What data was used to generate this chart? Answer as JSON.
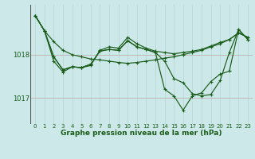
{
  "background_color": "#cce8e8",
  "grid_color_v": "#b8d8d8",
  "grid_color_h": "#c0b0b0",
  "line_color": "#1a5c1a",
  "xlabel": "Graphe pression niveau de la mer (hPa)",
  "xlabel_fontsize": 6.5,
  "yticks": [
    1017,
    1018
  ],
  "ylim": [
    1016.4,
    1019.15
  ],
  "xlim": [
    -0.5,
    23.5
  ],
  "xticks": [
    0,
    1,
    2,
    3,
    4,
    5,
    6,
    7,
    8,
    9,
    10,
    11,
    12,
    13,
    14,
    15,
    16,
    17,
    18,
    19,
    20,
    21,
    22,
    23
  ],
  "series": [
    {
      "x": [
        0,
        1,
        2,
        3,
        4,
        5,
        6,
        7,
        8,
        9,
        10,
        11,
        12,
        13,
        14,
        15,
        16,
        17,
        18,
        19,
        20,
        21,
        22,
        23
      ],
      "y": [
        1018.9,
        1018.55,
        1018.3,
        1018.1,
        1018.0,
        1017.95,
        1017.9,
        1017.88,
        1017.85,
        1017.82,
        1017.8,
        1017.82,
        1017.85,
        1017.88,
        1017.92,
        1017.95,
        1018.0,
        1018.05,
        1018.1,
        1018.18,
        1018.25,
        1018.35,
        1018.5,
        1018.4
      ]
    },
    {
      "x": [
        0,
        1,
        2,
        3,
        4,
        5,
        6,
        7,
        8,
        9,
        10,
        11,
        12,
        13,
        14,
        15,
        16,
        17,
        18,
        19,
        20,
        21,
        22,
        23
      ],
      "y": [
        1018.9,
        1018.55,
        1017.85,
        1017.6,
        1017.72,
        1017.7,
        1017.75,
        1018.1,
        1018.18,
        1018.15,
        1018.4,
        1018.25,
        1018.15,
        1018.08,
        1018.05,
        1018.02,
        1018.05,
        1018.08,
        1018.12,
        1018.2,
        1018.28,
        1018.35,
        1018.5,
        1018.4
      ]
    },
    {
      "x": [
        0,
        1,
        2,
        3,
        4,
        5,
        6,
        7,
        8,
        9,
        10,
        11,
        12,
        13,
        14,
        15,
        16,
        17,
        18,
        19,
        20,
        21,
        22,
        23
      ],
      "y": [
        1018.9,
        1018.55,
        1017.95,
        1017.65,
        1017.72,
        1017.7,
        1017.78,
        1018.08,
        1018.12,
        1018.1,
        1018.32,
        1018.18,
        1018.12,
        1018.05,
        1017.85,
        1017.45,
        1017.35,
        1017.1,
        1017.05,
        1017.08,
        1017.4,
        1018.05,
        1018.58,
        1018.35
      ]
    },
    {
      "x": [
        0,
        1,
        2,
        3,
        4,
        5,
        6,
        7,
        8,
        9,
        10,
        11,
        12,
        13,
        14,
        15,
        16,
        17,
        18,
        19,
        20,
        21,
        22,
        23
      ],
      "y": [
        1018.9,
        1018.55,
        1017.95,
        1017.65,
        1017.72,
        1017.7,
        1017.78,
        1018.08,
        1018.12,
        1018.1,
        1018.32,
        1018.18,
        1018.12,
        1018.05,
        1017.2,
        1017.05,
        1016.72,
        1017.05,
        1017.12,
        1017.38,
        1017.55,
        1017.62,
        1018.58,
        1018.35
      ]
    }
  ]
}
